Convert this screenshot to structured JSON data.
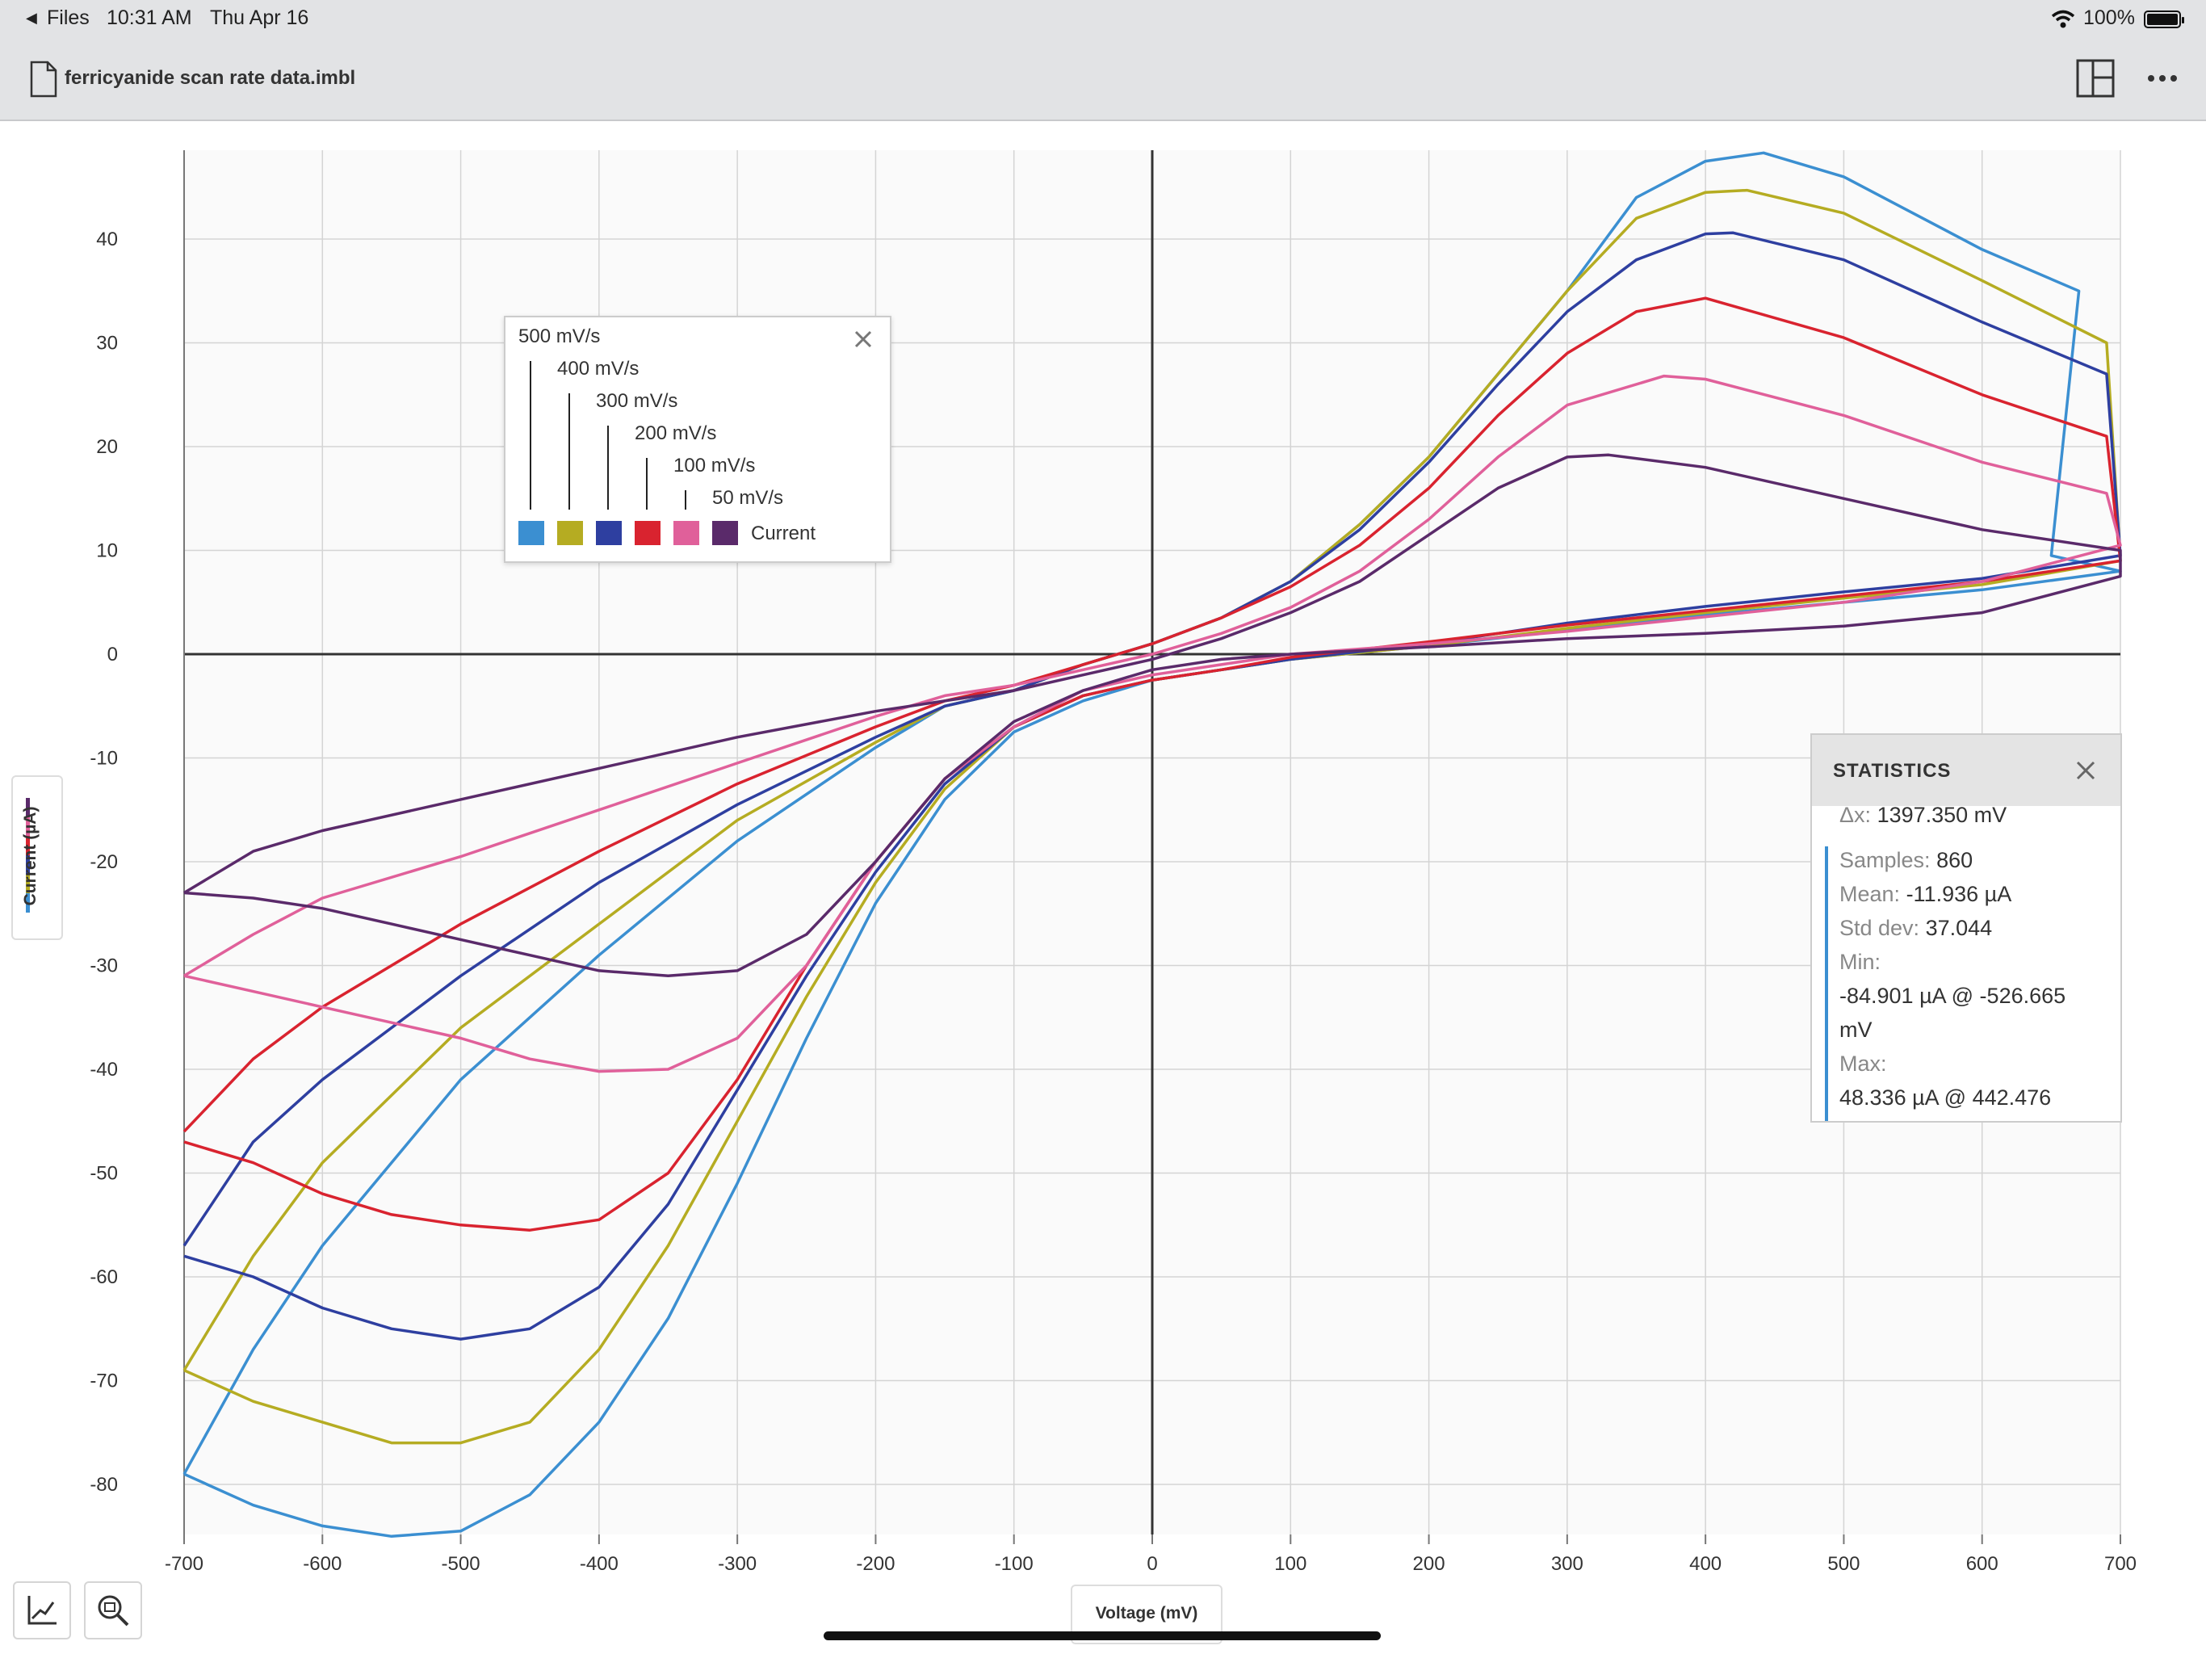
{
  "status_bar": {
    "back_label": "Files",
    "time": "10:31 AM",
    "date": "Thu Apr 16",
    "battery": "100%"
  },
  "toolbar": {
    "document_title": "ferricyanide scan rate data.imbl",
    "icons": [
      "document-icon",
      "split-view-icon",
      "more-icon"
    ]
  },
  "legend": {
    "entries": [
      "500 mV/s",
      "400 mV/s",
      "300 mV/s",
      "200 mV/s",
      "100 mV/s",
      "50 mV/s"
    ],
    "series_label": "Current",
    "colors": [
      "#3b8fd1",
      "#b5ac22",
      "#2e3fa0",
      "#d9232f",
      "#e0609a",
      "#5a2a6a"
    ]
  },
  "statistics": {
    "title": "STATISTICS",
    "dx_label": "Δx:",
    "dx_value": "1397.350 mV",
    "samples_label": "Samples:",
    "samples_value": "860",
    "mean_label": "Mean:",
    "mean_value": "-11.936 µA",
    "std_label": "Std dev:",
    "std_value": "37.044",
    "min_label": "Min:",
    "min_value_1": "-84.901 µA @ -526.665",
    "min_value_2": "mV",
    "max_label": "Max:",
    "max_value": "48.336 µA @ 442.476"
  },
  "axes": {
    "y_title": "Current (µA)",
    "x_title": "Voltage (mV)"
  },
  "tools": [
    "chart-tool-icon",
    "zoom-fit-icon"
  ],
  "chart_data": {
    "type": "line",
    "xlabel": "Voltage (mV)",
    "ylabel": "Current (µA)",
    "xlim": [
      -700,
      700
    ],
    "ylim": [
      -85,
      48
    ],
    "x_ticks": [
      -700,
      -600,
      -500,
      -400,
      -300,
      -200,
      -100,
      0,
      100,
      200,
      300,
      400,
      500,
      600,
      700
    ],
    "y_ticks": [
      -80,
      -70,
      -60,
      -50,
      -40,
      -30,
      -20,
      -10,
      0,
      10,
      20,
      30,
      40
    ],
    "grid": true,
    "series": [
      {
        "name": "500 mV/s",
        "color": "#3b8fd1",
        "v_start": 670,
        "forward": [
          [
            -700,
            -79
          ],
          [
            -650,
            -82
          ],
          [
            -600,
            -84
          ],
          [
            -550,
            -85
          ],
          [
            -500,
            -84.5
          ],
          [
            -450,
            -81
          ],
          [
            -400,
            -74
          ],
          [
            -350,
            -64
          ],
          [
            -300,
            -51
          ],
          [
            -250,
            -37
          ],
          [
            -200,
            -24
          ],
          [
            -150,
            -14
          ],
          [
            -100,
            -7.5
          ],
          [
            -50,
            -4.5
          ],
          [
            0,
            -2.5
          ],
          [
            50,
            -1.5
          ],
          [
            100,
            -0.5
          ],
          [
            200,
            0.8
          ],
          [
            300,
            2.3
          ],
          [
            400,
            3.8
          ],
          [
            500,
            5
          ],
          [
            600,
            6.2
          ],
          [
            700,
            8
          ]
        ],
        "reverse": [
          [
            700,
            8
          ],
          [
            650,
            9.5
          ],
          [
            670,
            35
          ],
          [
            600,
            39
          ],
          [
            500,
            46
          ],
          [
            442,
            48.3
          ],
          [
            400,
            47.5
          ],
          [
            350,
            44
          ],
          [
            300,
            35
          ],
          [
            250,
            27
          ],
          [
            200,
            19
          ],
          [
            150,
            12.5
          ],
          [
            100,
            7
          ],
          [
            50,
            3.5
          ],
          [
            0,
            1
          ],
          [
            -50,
            -1
          ],
          [
            -100,
            -3.5
          ],
          [
            -150,
            -5
          ],
          [
            -200,
            -9
          ],
          [
            -300,
            -18
          ],
          [
            -400,
            -29
          ],
          [
            -500,
            -41
          ],
          [
            -600,
            -57
          ],
          [
            -650,
            -67
          ],
          [
            -700,
            -79
          ]
        ]
      },
      {
        "name": "400 mV/s",
        "color": "#b5ac22",
        "v_start": 690,
        "forward": [
          [
            -700,
            -69
          ],
          [
            -650,
            -72
          ],
          [
            -600,
            -74
          ],
          [
            -550,
            -76
          ],
          [
            -500,
            -76
          ],
          [
            -450,
            -74
          ],
          [
            -400,
            -67
          ],
          [
            -350,
            -57
          ],
          [
            -300,
            -45
          ],
          [
            -250,
            -33
          ],
          [
            -200,
            -22
          ],
          [
            -150,
            -13
          ],
          [
            -100,
            -7
          ],
          [
            -50,
            -4
          ],
          [
            0,
            -2.5
          ],
          [
            50,
            -1.5
          ],
          [
            100,
            -0.5
          ],
          [
            200,
            0.8
          ],
          [
            300,
            2.5
          ],
          [
            400,
            4
          ],
          [
            500,
            5.4
          ],
          [
            600,
            6.7
          ],
          [
            700,
            9
          ]
        ],
        "reverse": [
          [
            690,
            30
          ],
          [
            600,
            36
          ],
          [
            500,
            42.5
          ],
          [
            430,
            44.7
          ],
          [
            400,
            44.5
          ],
          [
            350,
            42
          ],
          [
            300,
            35
          ],
          [
            250,
            27
          ],
          [
            200,
            19
          ],
          [
            150,
            12.5
          ],
          [
            100,
            7
          ],
          [
            50,
            3.5
          ],
          [
            0,
            1
          ],
          [
            -50,
            -1
          ],
          [
            -100,
            -3.5
          ],
          [
            -150,
            -5
          ],
          [
            -200,
            -8.5
          ],
          [
            -300,
            -16
          ],
          [
            -400,
            -26
          ],
          [
            -500,
            -36
          ],
          [
            -600,
            -49
          ],
          [
            -650,
            -58
          ],
          [
            -700,
            -69
          ]
        ]
      },
      {
        "name": "300 mV/s",
        "color": "#2e3fa0",
        "v_start": 690,
        "forward": [
          [
            -700,
            -58
          ],
          [
            -650,
            -60
          ],
          [
            -600,
            -63
          ],
          [
            -550,
            -65
          ],
          [
            -500,
            -66
          ],
          [
            -450,
            -65
          ],
          [
            -400,
            -61
          ],
          [
            -350,
            -53
          ],
          [
            -300,
            -42
          ],
          [
            -250,
            -31
          ],
          [
            -200,
            -21
          ],
          [
            -150,
            -12.5
          ],
          [
            -100,
            -7
          ],
          [
            -50,
            -4
          ],
          [
            0,
            -2.5
          ],
          [
            50,
            -1.5
          ],
          [
            100,
            -0.5
          ],
          [
            200,
            1
          ],
          [
            300,
            3
          ],
          [
            400,
            4.6
          ],
          [
            500,
            6
          ],
          [
            600,
            7.3
          ],
          [
            700,
            9.5
          ]
        ],
        "reverse": [
          [
            690,
            27
          ],
          [
            600,
            32
          ],
          [
            500,
            38
          ],
          [
            420,
            40.6
          ],
          [
            400,
            40.5
          ],
          [
            350,
            38
          ],
          [
            300,
            33
          ],
          [
            250,
            26
          ],
          [
            200,
            18.5
          ],
          [
            150,
            12
          ],
          [
            100,
            7
          ],
          [
            50,
            3.5
          ],
          [
            0,
            1
          ],
          [
            -50,
            -1
          ],
          [
            -100,
            -3.5
          ],
          [
            -150,
            -5
          ],
          [
            -200,
            -8
          ],
          [
            -300,
            -14.5
          ],
          [
            -400,
            -22
          ],
          [
            -500,
            -31
          ],
          [
            -600,
            -41
          ],
          [
            -650,
            -47
          ],
          [
            -700,
            -57
          ]
        ]
      },
      {
        "name": "200 mV/s",
        "color": "#d9232f",
        "v_start": 690,
        "forward": [
          [
            -700,
            -47
          ],
          [
            -650,
            -49
          ],
          [
            -600,
            -52
          ],
          [
            -550,
            -54
          ],
          [
            -500,
            -55
          ],
          [
            -450,
            -55.5
          ],
          [
            -400,
            -54.5
          ],
          [
            -350,
            -50
          ],
          [
            -300,
            -41
          ],
          [
            -250,
            -30
          ],
          [
            -200,
            -20
          ],
          [
            -150,
            -12
          ],
          [
            -100,
            -7
          ],
          [
            -50,
            -4
          ],
          [
            0,
            -2.5
          ],
          [
            50,
            -1.5
          ],
          [
            100,
            -0.3
          ],
          [
            200,
            1.2
          ],
          [
            300,
            2.8
          ],
          [
            400,
            4.2
          ],
          [
            500,
            5.6
          ],
          [
            600,
            7
          ],
          [
            700,
            9
          ]
        ],
        "reverse": [
          [
            690,
            21
          ],
          [
            600,
            25
          ],
          [
            500,
            30.5
          ],
          [
            400,
            34.3
          ],
          [
            350,
            33
          ],
          [
            300,
            29
          ],
          [
            250,
            23
          ],
          [
            200,
            16
          ],
          [
            150,
            10.5
          ],
          [
            100,
            6.5
          ],
          [
            50,
            3.5
          ],
          [
            0,
            1
          ],
          [
            -50,
            -1
          ],
          [
            -100,
            -3
          ],
          [
            -150,
            -4.5
          ],
          [
            -200,
            -7
          ],
          [
            -300,
            -12.5
          ],
          [
            -400,
            -19
          ],
          [
            -500,
            -26
          ],
          [
            -600,
            -34
          ],
          [
            -650,
            -39
          ],
          [
            -700,
            -46
          ]
        ]
      },
      {
        "name": "100 mV/s",
        "color": "#e0609a",
        "v_start": 690,
        "forward": [
          [
            -700,
            -31
          ],
          [
            -650,
            -32.5
          ],
          [
            -600,
            -34
          ],
          [
            -550,
            -35.5
          ],
          [
            -500,
            -37
          ],
          [
            -450,
            -39
          ],
          [
            -400,
            -40.2
          ],
          [
            -350,
            -40
          ],
          [
            -300,
            -37
          ],
          [
            -250,
            -30
          ],
          [
            -200,
            -20
          ],
          [
            -150,
            -12
          ],
          [
            -100,
            -7
          ],
          [
            -50,
            -3.5
          ],
          [
            0,
            -2
          ],
          [
            50,
            -1
          ],
          [
            100,
            0
          ],
          [
            200,
            1
          ],
          [
            300,
            2.2
          ],
          [
            400,
            3.6
          ],
          [
            500,
            5
          ],
          [
            600,
            7
          ],
          [
            700,
            10.5
          ]
        ],
        "reverse": [
          [
            690,
            15.5
          ],
          [
            600,
            18.5
          ],
          [
            500,
            23
          ],
          [
            400,
            26.5
          ],
          [
            370,
            26.8
          ],
          [
            300,
            24
          ],
          [
            250,
            19
          ],
          [
            200,
            13
          ],
          [
            150,
            8
          ],
          [
            100,
            4.5
          ],
          [
            50,
            2
          ],
          [
            0,
            0
          ],
          [
            -50,
            -1.5
          ],
          [
            -100,
            -3
          ],
          [
            -150,
            -4
          ],
          [
            -200,
            -6
          ],
          [
            -300,
            -10.5
          ],
          [
            -400,
            -15
          ],
          [
            -500,
            -19.5
          ],
          [
            -600,
            -23.5
          ],
          [
            -650,
            -27
          ],
          [
            -700,
            -31
          ]
        ]
      },
      {
        "name": "50 mV/s",
        "color": "#5a2a6a",
        "v_start": 700,
        "forward": [
          [
            -700,
            -23
          ],
          [
            -650,
            -23.5
          ],
          [
            -600,
            -24.5
          ],
          [
            -550,
            -26
          ],
          [
            -500,
            -27.5
          ],
          [
            -450,
            -29
          ],
          [
            -400,
            -30.5
          ],
          [
            -350,
            -31
          ],
          [
            -300,
            -30.5
          ],
          [
            -250,
            -27
          ],
          [
            -200,
            -20
          ],
          [
            -150,
            -12
          ],
          [
            -100,
            -6.5
          ],
          [
            -50,
            -3.5
          ],
          [
            0,
            -1.5
          ],
          [
            50,
            -0.5
          ],
          [
            100,
            0
          ],
          [
            200,
            0.7
          ],
          [
            300,
            1.5
          ],
          [
            400,
            2
          ],
          [
            500,
            2.7
          ],
          [
            600,
            4
          ],
          [
            700,
            7.5
          ]
        ],
        "reverse": [
          [
            700,
            10
          ],
          [
            600,
            12
          ],
          [
            500,
            15
          ],
          [
            400,
            18
          ],
          [
            330,
            19.2
          ],
          [
            300,
            19
          ],
          [
            250,
            16
          ],
          [
            200,
            11.5
          ],
          [
            150,
            7
          ],
          [
            100,
            4
          ],
          [
            50,
            1.5
          ],
          [
            0,
            -0.5
          ],
          [
            -50,
            -2
          ],
          [
            -100,
            -3.5
          ],
          [
            -200,
            -5.5
          ],
          [
            -300,
            -8
          ],
          [
            -400,
            -11
          ],
          [
            -500,
            -14
          ],
          [
            -600,
            -17
          ],
          [
            -650,
            -19
          ],
          [
            -700,
            -23
          ]
        ]
      }
    ]
  }
}
